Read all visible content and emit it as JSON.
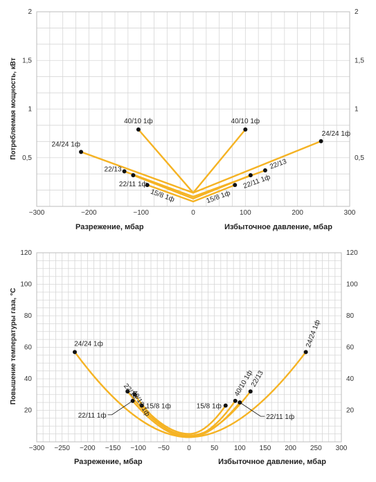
{
  "chart_data": [
    {
      "type": "line",
      "ylabel": "Потребляемая мощность, кВт",
      "xlabel_left": "Разрежение, мбар",
      "xlabel_right": "Избыточное давление, мбар",
      "xlim": [
        -300,
        300
      ],
      "ylim": [
        0,
        2
      ],
      "xticks": [
        "−300",
        "−200",
        "−100",
        "0",
        "100",
        "200",
        "300"
      ],
      "yticks": [
        "0,5",
        "1",
        "1,5",
        "2"
      ],
      "grid": true,
      "line_color": "#f5b324",
      "series": [
        {
          "name": "24/24 1ф",
          "x": [
            -215,
            0,
            245
          ],
          "y": [
            0.56,
            0.14,
            0.67
          ]
        },
        {
          "name": "40/10 1ф",
          "x": [
            -105,
            0,
            100
          ],
          "y": [
            0.79,
            0.14,
            0.79
          ]
        },
        {
          "name": "22/13",
          "x": [
            -132,
            0,
            138
          ],
          "y": [
            0.36,
            0.1,
            0.37
          ]
        },
        {
          "name": "22/11 1ф",
          "x": [
            -115,
            0,
            110
          ],
          "y": [
            0.32,
            0.08,
            0.32
          ]
        },
        {
          "name": "15/8 1ф",
          "x": [
            -88,
            0,
            80
          ],
          "y": [
            0.22,
            0.05,
            0.22
          ]
        }
      ]
    },
    {
      "type": "line",
      "ylabel": "Повышение температуры газа, °С",
      "xlabel_left": "Разрежение, мбар",
      "xlabel_right": "Избыточное давление, мбар",
      "xlim": [
        -300,
        300
      ],
      "ylim": [
        0,
        120
      ],
      "xticks": [
        "−300",
        "−250",
        "−200",
        "−150",
        "−100",
        "−50",
        "0",
        "50",
        "100",
        "150",
        "200",
        "250",
        "300"
      ],
      "yticks": [
        "20",
        "40",
        "60",
        "80",
        "100",
        "120"
      ],
      "grid": true,
      "line_color": "#f5b324",
      "series": [
        {
          "name": "24/24 1ф",
          "x": [
            -225,
            0,
            230
          ],
          "y": [
            57,
            3,
            57
          ]
        },
        {
          "name": "40/10 1ф",
          "x": [
            -107,
            0,
            91
          ],
          "y": [
            30,
            3,
            26
          ]
        },
        {
          "name": "22/13",
          "x": [
            -121,
            0,
            121
          ],
          "y": [
            32,
            4,
            32
          ]
        },
        {
          "name": "22/11 1ф",
          "x": [
            -111,
            0,
            100
          ],
          "y": [
            26,
            3,
            25
          ]
        },
        {
          "name": "15/8 1ф",
          "x": [
            -93,
            0,
            72
          ],
          "y": [
            23,
            5,
            23
          ]
        }
      ]
    }
  ]
}
